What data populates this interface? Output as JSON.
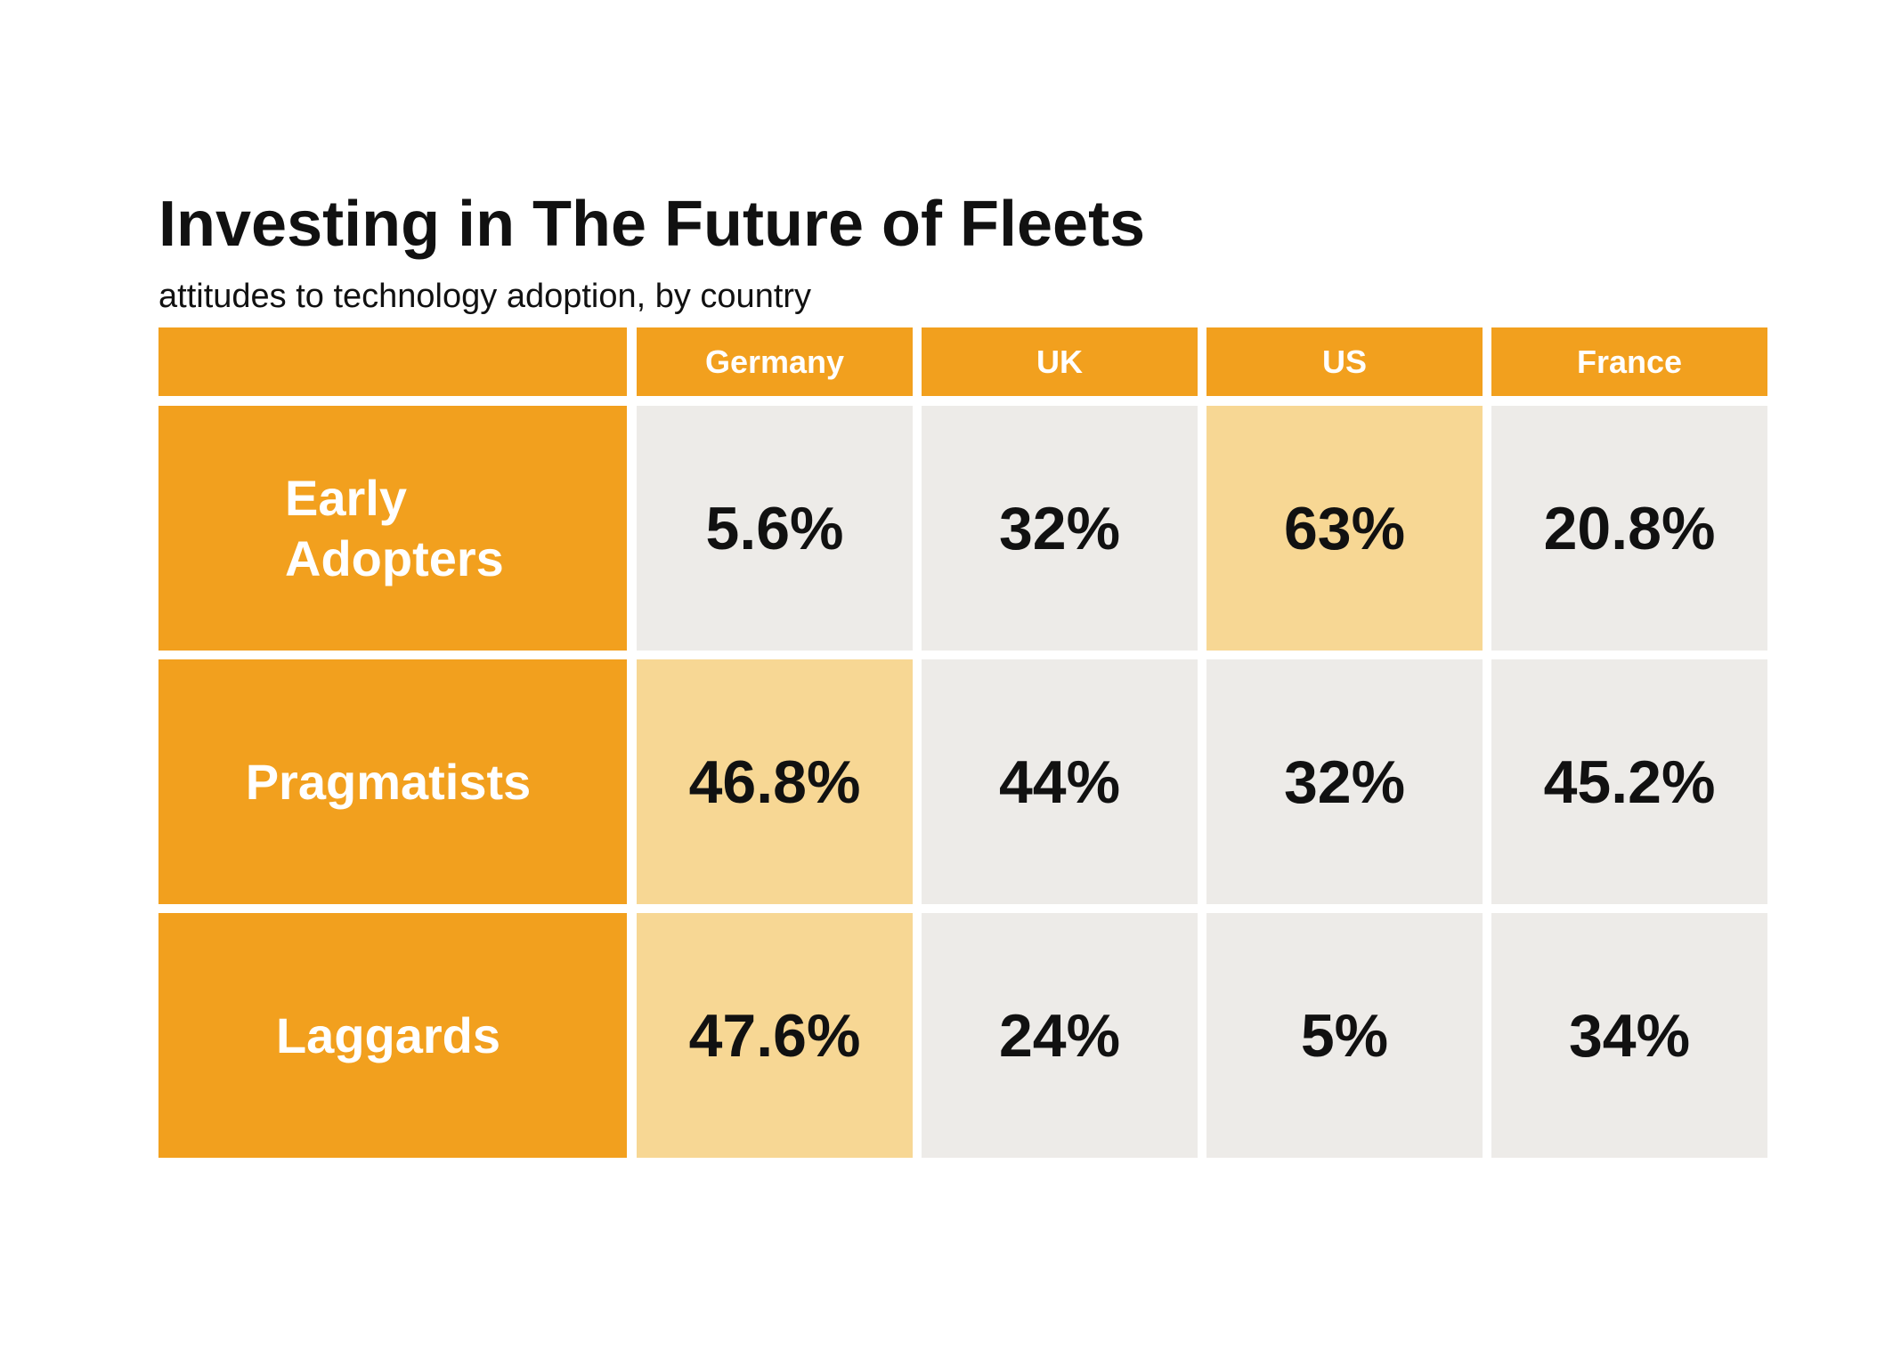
{
  "chart_data": {
    "type": "table",
    "title": "Investing in The Future of Fleets",
    "subtitle": "attitudes to technology adoption, by country",
    "columns": [
      "Germany",
      "UK",
      "US",
      "France"
    ],
    "rows": [
      {
        "label": "Early Adopters",
        "label_lines": [
          "Early",
          "Adopters"
        ],
        "values": [
          "5.6%",
          "32%",
          "63%",
          "20.8%"
        ],
        "highlight": [
          false,
          false,
          true,
          false
        ]
      },
      {
        "label": "Pragmatists",
        "label_lines": [
          "Pragmatists"
        ],
        "values": [
          "46.8%",
          "44%",
          "32%",
          "45.2%"
        ],
        "highlight": [
          true,
          false,
          false,
          false
        ]
      },
      {
        "label": "Laggards",
        "label_lines": [
          "Laggards"
        ],
        "values": [
          "47.6%",
          "24%",
          "5%",
          "34%"
        ],
        "highlight": [
          true,
          false,
          false,
          false
        ]
      }
    ]
  },
  "colors": {
    "header": "#F2A01E",
    "row_label": "#F2A01E",
    "cell": "#EDEBE8",
    "highlight": "#F7D794"
  }
}
